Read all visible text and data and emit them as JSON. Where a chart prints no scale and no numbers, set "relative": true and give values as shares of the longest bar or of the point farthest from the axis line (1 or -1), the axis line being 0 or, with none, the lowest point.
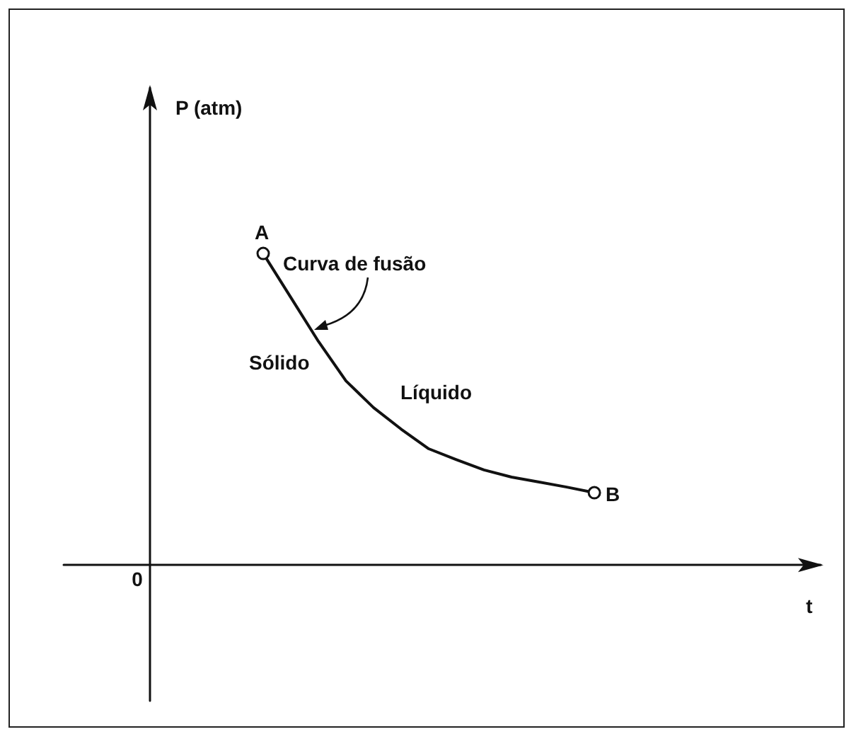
{
  "chart_data": {
    "type": "line",
    "relative": true,
    "line_style": "solid",
    "categories": [
      null,
      null,
      null,
      null,
      null,
      null,
      null,
      null,
      null,
      null,
      null,
      null,
      null
    ],
    "series": [
      {
        "color": "#111111",
        "values": [
          1,
          0.859,
          0.718,
          0.591,
          0.505,
          0.436,
          0.373,
          0.338,
          0.305,
          0.282,
          0.266,
          0.25,
          0.232
        ]
      }
    ],
    "annotations": [
      "P (atm)",
      "A",
      "Curva de fusão",
      "Sólido",
      "Líquido",
      "B",
      "0",
      "t"
    ]
  }
}
